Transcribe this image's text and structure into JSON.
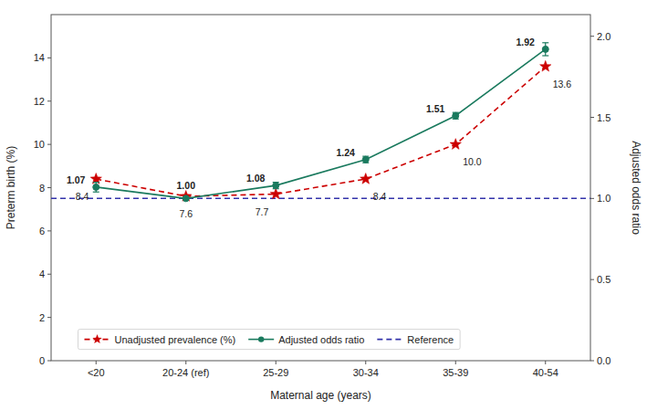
{
  "chart_data": {
    "type": "line",
    "xlabel": "Maternal age (years)",
    "ylabel": "Preterm birth (%)",
    "y2label": "Adjusted odds ratio",
    "categories": [
      "<20",
      "20-24 (ref)",
      "25-29",
      "30-34",
      "35-39",
      "40-54"
    ],
    "series": [
      {
        "name": "Unadjusted prevalence (%)",
        "color": "#CC0000",
        "marker": "star",
        "line_style": "dashed",
        "values": [
          8.4,
          7.6,
          7.7,
          8.4,
          10.0,
          13.6
        ],
        "value_labels": [
          "8.4",
          "7.6",
          "7.7",
          "8.4",
          "10.0",
          "13.6"
        ]
      },
      {
        "name": "Adjusted odds ratio",
        "color": "#1A7A5E",
        "marker": "circle",
        "line_style": "solid",
        "axis": "y2",
        "values": [
          1.07,
          1.0,
          1.08,
          1.24,
          1.51,
          1.92
        ],
        "ci_low": [
          1.04,
          1.0,
          1.06,
          1.22,
          1.49,
          1.88
        ],
        "ci_high": [
          1.1,
          1.0,
          1.1,
          1.26,
          1.53,
          1.96
        ],
        "value_labels": [
          "1.07",
          "1.00",
          "1.08",
          "1.24",
          "1.51",
          "1.92"
        ]
      }
    ],
    "reference_lines": [
      {
        "name": "Reference",
        "value": 1.0,
        "axis": "y2",
        "color": "#3333AA",
        "line_style": "dashed"
      }
    ],
    "ylim": [
      0,
      16
    ],
    "yticks": [
      0,
      2,
      4,
      6,
      8,
      10,
      12,
      14
    ],
    "y2lim": [
      0.0,
      2.1333
    ],
    "y2ticks": [
      {
        "value": 0.0,
        "label": "0.0"
      },
      0.5,
      {
        "value": 1.0,
        "label": "1.0"
      },
      1.5,
      {
        "value": 2.0,
        "label": "2.0"
      }
    ],
    "grid": false,
    "legend": "lower left",
    "data_labels": true
  }
}
